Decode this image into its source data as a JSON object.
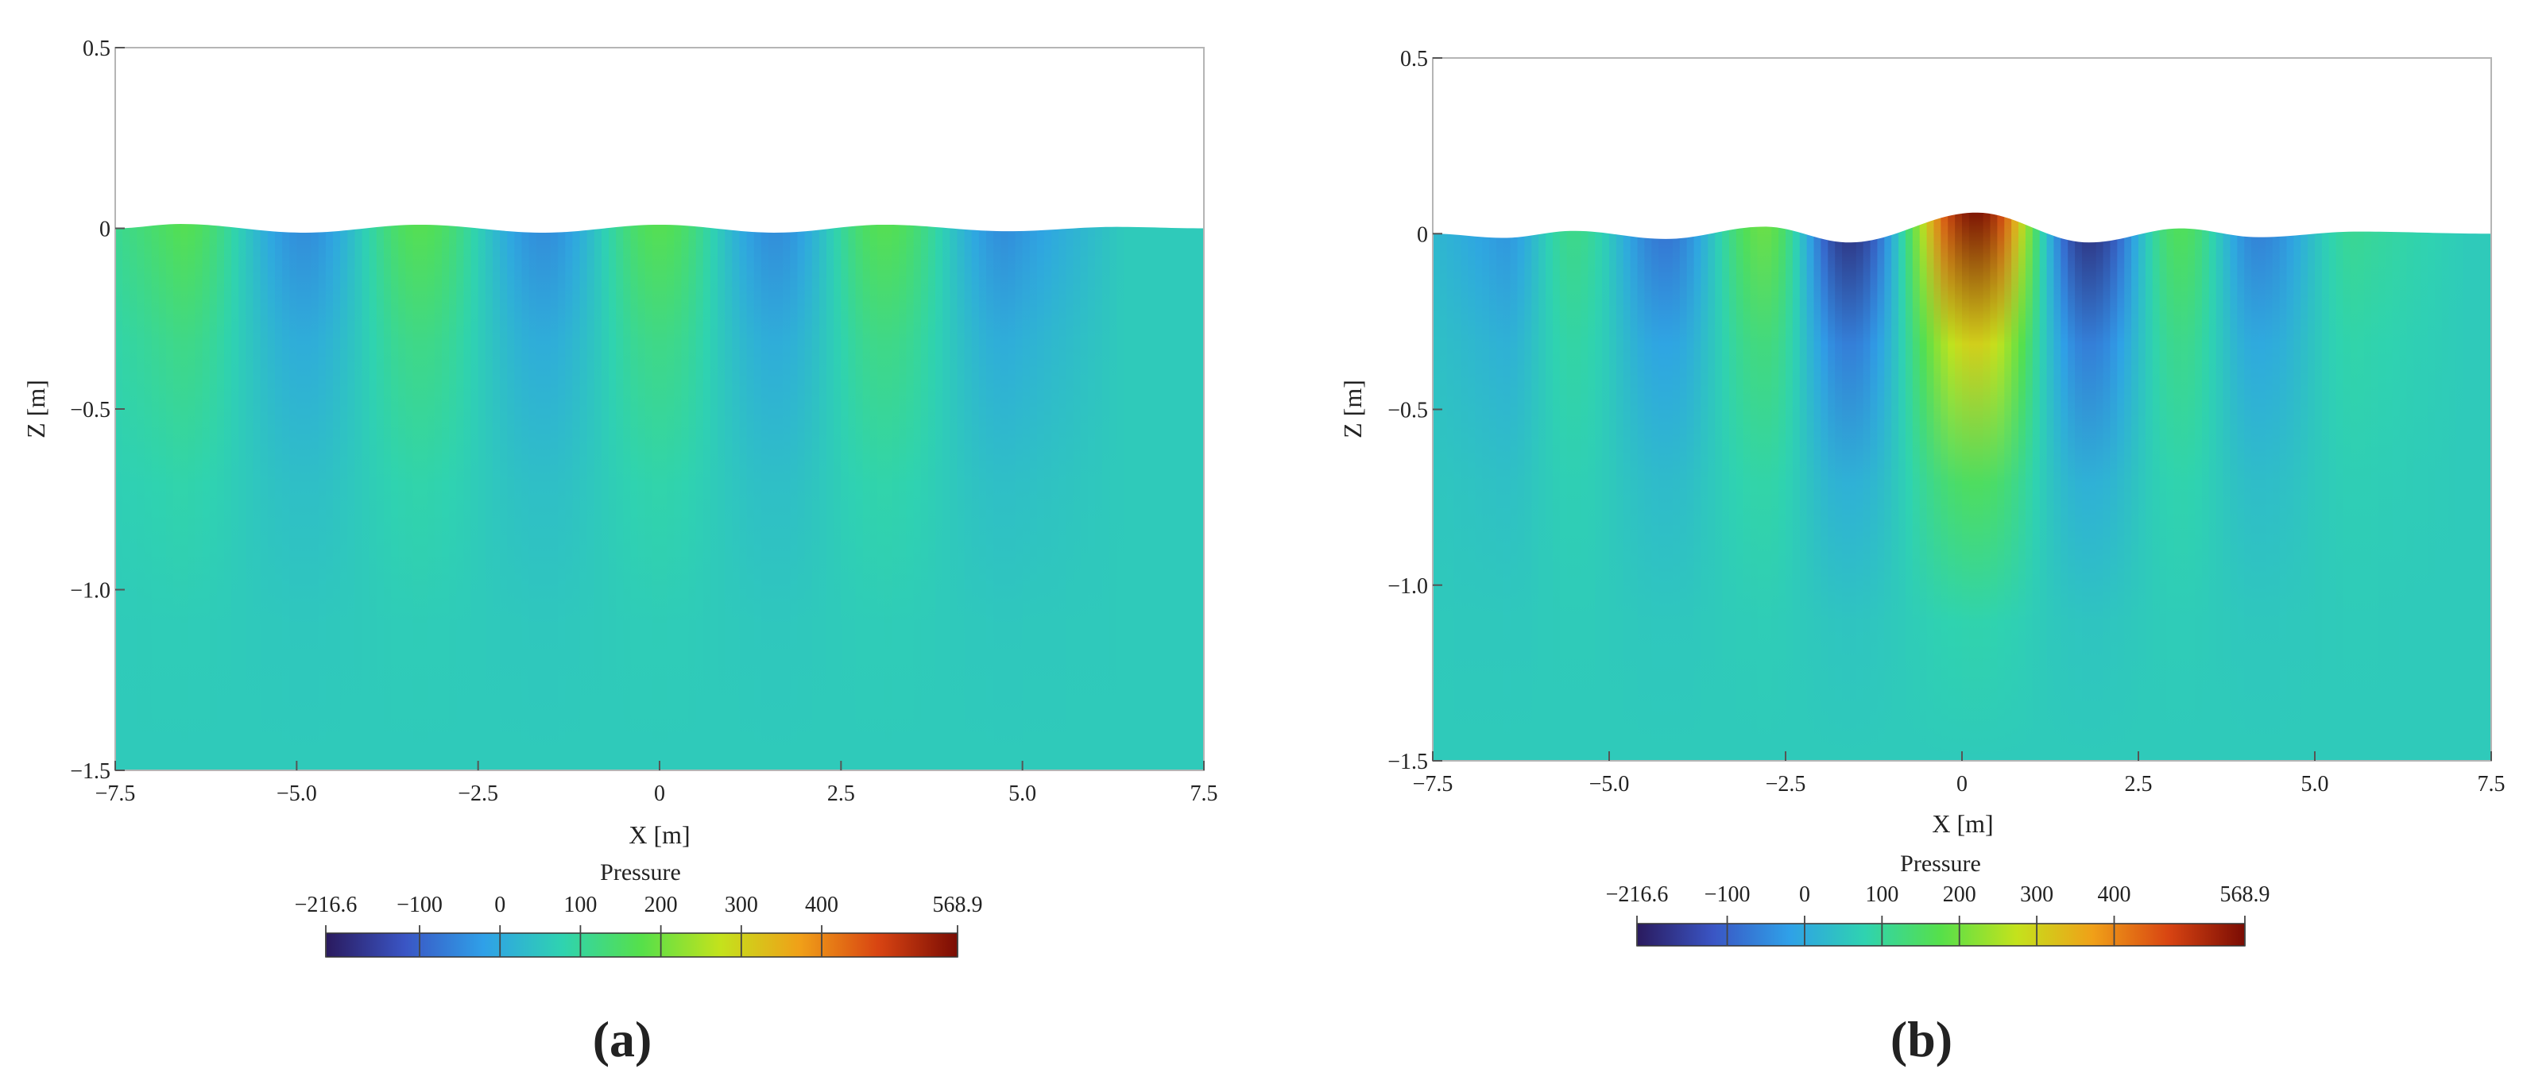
{
  "figure": {
    "panels": [
      {
        "label_text": "(a)",
        "label_letter": "a"
      },
      {
        "label_text": "(b)",
        "label_letter": "b"
      }
    ]
  },
  "chart_data": [
    {
      "type": "heatmap",
      "panel": "a",
      "xlabel": "X [m]",
      "ylabel": "Z [m]",
      "xlim": [
        -7.5,
        7.5
      ],
      "ylim": [
        -1.5,
        0.5
      ],
      "xticks": [
        -7.5,
        -5.0,
        -2.5,
        0,
        2.5,
        5.0,
        7.5
      ],
      "xtick_labels": [
        "−7.5",
        "−5.0",
        "−2.5",
        "0",
        "2.5",
        "5.0",
        "7.5"
      ],
      "yticks": [
        0.5,
        0,
        -0.5,
        -1.0,
        -1.5
      ],
      "ytick_labels": [
        "0.5",
        "0",
        "−0.5",
        "−1.0",
        "−1.5"
      ],
      "free_surface": {
        "x": [
          -7.5,
          -6.6,
          -4.9,
          -3.3,
          -1.6,
          0.0,
          1.6,
          3.1,
          4.8,
          6.3,
          7.5
        ],
        "z": [
          0.0,
          0.012,
          -0.012,
          0.01,
          -0.012,
          0.01,
          -0.012,
          0.01,
          -0.008,
          0.004,
          0.0
        ]
      },
      "pressure_field": {
        "crest_positions_x": [
          -6.6,
          -3.3,
          0.0,
          3.1
        ],
        "trough_positions_x": [
          -4.9,
          -1.6,
          1.6,
          4.8
        ],
        "surface_pressure_crest": 180,
        "surface_pressure_trough": -55,
        "deep_pressure": 60
      },
      "colorbar": {
        "title": "Pressure",
        "min": -216.6,
        "max": 568.9,
        "tick_values": [
          -216.6,
          -100,
          0,
          100,
          200,
          300,
          400,
          568.9
        ],
        "tick_labels": [
          "−216.6",
          "−100",
          "0",
          "100",
          "200",
          "300",
          "400",
          "568.9"
        ],
        "colors": [
          "#2a1a5e",
          "#3a55c4",
          "#2fa0e8",
          "#2fd3b0",
          "#56e04a",
          "#c4e21c",
          "#f0a018",
          "#d84412",
          "#7a0c04"
        ]
      }
    },
    {
      "type": "heatmap",
      "panel": "b",
      "xlabel": "X [m]",
      "ylabel": "Z [m]",
      "xlim": [
        -7.5,
        7.5
      ],
      "ylim": [
        -1.5,
        0.5
      ],
      "xticks": [
        -7.5,
        -5.0,
        -2.5,
        0,
        2.5,
        5.0,
        7.5
      ],
      "xtick_labels": [
        "−7.5",
        "−5.0",
        "−2.5",
        "0",
        "2.5",
        "5.0",
        "7.5"
      ],
      "yticks": [
        0.5,
        0,
        -0.5,
        -1.0,
        -1.5
      ],
      "ytick_labels": [
        "0.5",
        "0",
        "−0.5",
        "−1.0",
        "−1.5"
      ],
      "free_surface": {
        "x": [
          -7.5,
          -6.5,
          -5.5,
          -4.2,
          -2.8,
          -1.6,
          0.2,
          1.8,
          3.1,
          4.2,
          5.6,
          7.5
        ],
        "z": [
          0.0,
          -0.012,
          0.008,
          -0.015,
          0.02,
          -0.025,
          0.06,
          -0.025,
          0.015,
          -0.01,
          0.006,
          0.0
        ]
      },
      "pressure_field": {
        "crest_positions_x": [
          -5.5,
          -2.8,
          0.2,
          3.1,
          5.6
        ],
        "crest_surface_pressures": [
          120,
          200,
          568.9,
          170,
          110
        ],
        "trough_positions_x": [
          -6.5,
          -4.2,
          -1.6,
          1.8,
          4.2
        ],
        "trough_surface_pressures": [
          -40,
          -90,
          -200,
          -200,
          -70
        ],
        "deep_pressure": 60
      },
      "colorbar": {
        "title": "Pressure",
        "min": -216.6,
        "max": 568.9,
        "tick_values": [
          -216.6,
          -100,
          0,
          100,
          200,
          300,
          400,
          568.9
        ],
        "tick_labels": [
          "−216.6",
          "−100",
          "0",
          "100",
          "200",
          "300",
          "400",
          "568.9"
        ],
        "colors": [
          "#2a1a5e",
          "#3a55c4",
          "#2fa0e8",
          "#2fd3b0",
          "#56e04a",
          "#c4e21c",
          "#f0a018",
          "#d84412",
          "#7a0c04"
        ]
      }
    }
  ]
}
